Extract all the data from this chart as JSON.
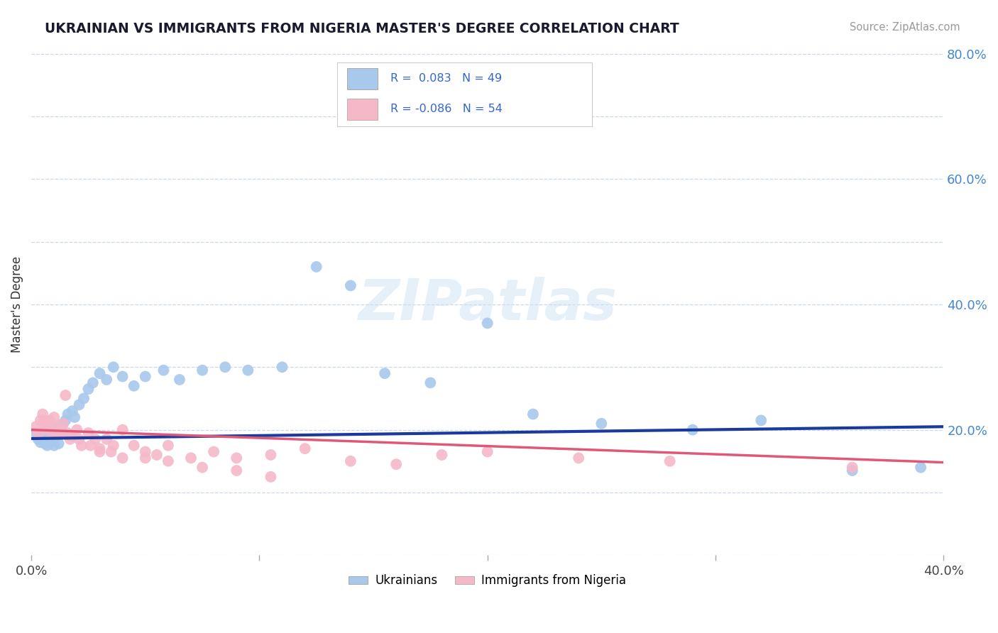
{
  "title": "UKRAINIAN VS IMMIGRANTS FROM NIGERIA MASTER'S DEGREE CORRELATION CHART",
  "source": "Source: ZipAtlas.com",
  "ylabel": "Master's Degree",
  "xlim": [
    0.0,
    0.4
  ],
  "ylim": [
    0.0,
    0.8
  ],
  "blue_color": "#A8C8EC",
  "pink_color": "#F4B8C8",
  "line_blue": "#1A3A9C",
  "line_pink": "#E05878",
  "watermark": "ZIPatlas",
  "background_color": "#FFFFFF",
  "ukrainians_x": [
    0.002,
    0.003,
    0.004,
    0.005,
    0.006,
    0.007,
    0.008,
    0.009,
    0.01,
    0.011,
    0.012,
    0.013,
    0.014,
    0.015,
    0.016,
    0.018,
    0.019,
    0.021,
    0.023,
    0.025,
    0.027,
    0.03,
    0.033,
    0.036,
    0.04,
    0.045,
    0.05,
    0.058,
    0.065,
    0.075,
    0.085,
    0.095,
    0.11,
    0.125,
    0.14,
    0.155,
    0.175,
    0.2,
    0.22,
    0.25,
    0.29,
    0.32,
    0.36,
    0.39,
    0.004,
    0.006,
    0.008,
    0.012,
    0.017
  ],
  "ukrainians_y": [
    0.195,
    0.185,
    0.18,
    0.19,
    0.2,
    0.175,
    0.185,
    0.195,
    0.175,
    0.19,
    0.205,
    0.2,
    0.21,
    0.215,
    0.225,
    0.23,
    0.22,
    0.24,
    0.25,
    0.265,
    0.275,
    0.29,
    0.28,
    0.3,
    0.285,
    0.27,
    0.285,
    0.295,
    0.28,
    0.295,
    0.3,
    0.295,
    0.3,
    0.46,
    0.43,
    0.29,
    0.275,
    0.37,
    0.225,
    0.21,
    0.2,
    0.215,
    0.135,
    0.14,
    0.19,
    0.178,
    0.182,
    0.178,
    0.192
  ],
  "nigeria_x": [
    0.002,
    0.003,
    0.004,
    0.005,
    0.006,
    0.007,
    0.008,
    0.009,
    0.01,
    0.011,
    0.012,
    0.013,
    0.014,
    0.015,
    0.016,
    0.018,
    0.02,
    0.022,
    0.025,
    0.028,
    0.03,
    0.033,
    0.036,
    0.04,
    0.045,
    0.05,
    0.055,
    0.06,
    0.07,
    0.08,
    0.09,
    0.105,
    0.12,
    0.14,
    0.16,
    0.18,
    0.2,
    0.24,
    0.28,
    0.36,
    0.006,
    0.009,
    0.013,
    0.017,
    0.021,
    0.026,
    0.03,
    0.035,
    0.04,
    0.05,
    0.06,
    0.075,
    0.09,
    0.105
  ],
  "nigeria_y": [
    0.205,
    0.195,
    0.215,
    0.225,
    0.2,
    0.21,
    0.215,
    0.195,
    0.22,
    0.205,
    0.195,
    0.2,
    0.21,
    0.255,
    0.195,
    0.19,
    0.2,
    0.175,
    0.195,
    0.185,
    0.165,
    0.185,
    0.175,
    0.2,
    0.175,
    0.165,
    0.16,
    0.175,
    0.155,
    0.165,
    0.155,
    0.16,
    0.17,
    0.15,
    0.145,
    0.16,
    0.165,
    0.155,
    0.15,
    0.14,
    0.215,
    0.2,
    0.195,
    0.185,
    0.185,
    0.175,
    0.17,
    0.165,
    0.155,
    0.155,
    0.15,
    0.14,
    0.135,
    0.125
  ]
}
